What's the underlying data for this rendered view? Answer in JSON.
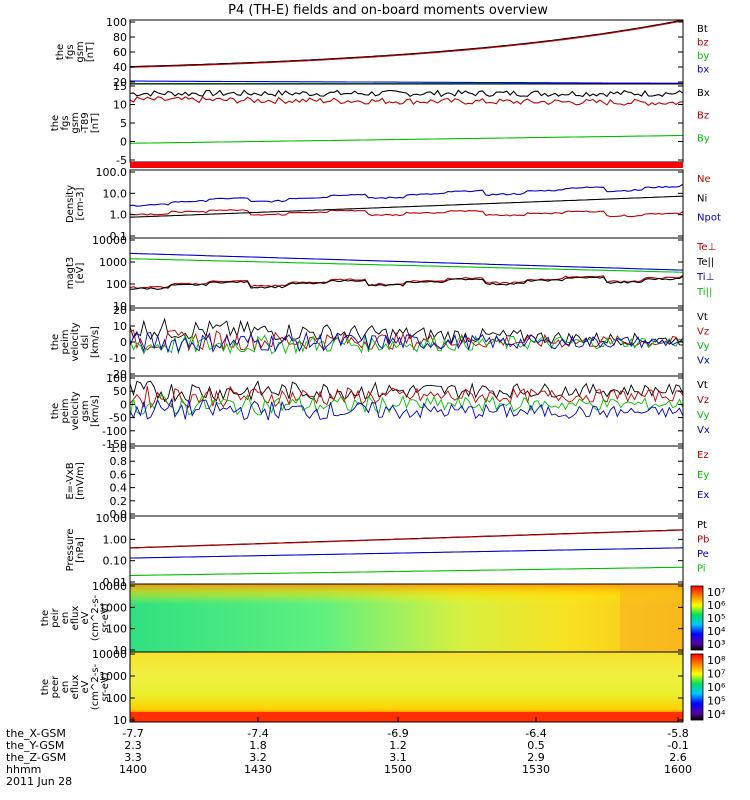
{
  "chart_data": {
    "type": "line",
    "title": "P4 (TH-E) fields and on-board moments overview",
    "panels": [
      {
        "id": "fgs_gsm",
        "ylabel": [
          "the",
          "fgs",
          "gsm",
          "[nT]"
        ],
        "yticks": [
          "100",
          "80",
          "60",
          "40",
          "20"
        ],
        "ylim": [
          16,
          104
        ],
        "series": [
          {
            "name": "Bt",
            "color": "#000000",
            "style": "exp",
            "start": 40,
            "end": 104
          },
          {
            "name": "bz",
            "color": "#c00000",
            "style": "exp",
            "start": 39,
            "end": 103
          },
          {
            "name": "by",
            "color": "#00c000",
            "style": "flat",
            "start": 16.5,
            "end": 16.5
          },
          {
            "name": "bx",
            "color": "#0000ff",
            "style": "flat",
            "start": 20,
            "end": 17
          }
        ]
      },
      {
        "id": "fgs_gsm_t89",
        "ylabel": [
          "the",
          "fgs",
          "gsm",
          "-T89",
          "[nT]"
        ],
        "yticks": [
          "15",
          "10",
          "5",
          "0",
          "-5"
        ],
        "ylim": [
          -8,
          17
        ],
        "series": [
          {
            "name": "Bx",
            "color": "#000000",
            "style": "noisy",
            "start": 14,
            "end": 14
          },
          {
            "name": "Bz",
            "color": "#c00000",
            "style": "noisy",
            "start": 12,
            "end": 11
          },
          {
            "name": "By",
            "color": "#00c000",
            "style": "linear",
            "start": -2,
            "end": 0.5
          }
        ]
      },
      {
        "id": "density",
        "ylabel": [
          "Density",
          "[cm-3]"
        ],
        "yticks": [
          "100.0",
          "10.0",
          "1.0",
          "0.1"
        ],
        "ylim": [
          0.07,
          300
        ],
        "log": true,
        "series": [
          {
            "name": "Ne",
            "color": "#c00000",
            "style": "step",
            "start": 1.8,
            "end": 1.4
          },
          {
            "name": "Ni",
            "color": "#000000",
            "style": "exp",
            "start": 0.9,
            "end": 12
          },
          {
            "name": "Npot",
            "color": "#0000cc",
            "style": "step",
            "start": 5,
            "end": 40
          }
        ]
      },
      {
        "id": "magt3",
        "ylabel": [
          "magt3",
          "[eV]"
        ],
        "yticks": [
          "10000",
          "1000",
          "100",
          "10"
        ],
        "ylim": [
          10,
          10000
        ],
        "log": true,
        "series": [
          {
            "name": "Te⊥",
            "color": "#c00000",
            "style": "step",
            "start": 100,
            "end": 200
          },
          {
            "name": "Te||",
            "color": "#000000",
            "style": "step",
            "start": 90,
            "end": 180
          },
          {
            "name": "Ti⊥",
            "color": "#0000cc",
            "style": "linear",
            "start": 2200,
            "end": 420
          },
          {
            "name": "Ti||",
            "color": "#00c000",
            "style": "linear",
            "start": 1300,
            "end": 340
          }
        ]
      },
      {
        "id": "peim_dsl",
        "ylabel": [
          "the",
          "peim",
          "velocity",
          "dsl",
          "[km/s]"
        ],
        "yticks": [
          "20",
          "10",
          "0",
          "-10",
          "-20"
        ],
        "ylim": [
          -20,
          20
        ],
        "series": [
          {
            "name": "Vt",
            "color": "#000000",
            "style": "spiky",
            "start": 8,
            "end": 1
          },
          {
            "name": "Vz",
            "color": "#c00000",
            "style": "spiky",
            "start": 1,
            "end": 0
          },
          {
            "name": "Vy",
            "color": "#00c000",
            "style": "spiky",
            "start": -2,
            "end": 0
          },
          {
            "name": "Vx",
            "color": "#0000cc",
            "style": "spiky",
            "start": 0,
            "end": 0
          }
        ]
      },
      {
        "id": "peim_gsm",
        "ylabel": [
          "the",
          "peim",
          "velocity",
          "gsm",
          "[km/s]"
        ],
        "yticks": [
          "100",
          "50",
          "0",
          "-50",
          "-100",
          "-150"
        ],
        "ylim": [
          -150,
          100
        ],
        "series": [
          {
            "name": "Vt",
            "color": "#000000",
            "style": "spiky",
            "start": 45,
            "end": 50
          },
          {
            "name": "Vz",
            "color": "#c00000",
            "style": "spiky",
            "start": 25,
            "end": 30
          },
          {
            "name": "Vy",
            "color": "#00c000",
            "style": "spiky",
            "start": -5,
            "end": 0
          },
          {
            "name": "Vx",
            "color": "#0000cc",
            "style": "spiky",
            "start": -20,
            "end": -30
          }
        ]
      },
      {
        "id": "efield",
        "ylabel": [
          "E=-VxB",
          "[mV/m]"
        ],
        "yticks": [
          "1.0",
          "0.8",
          "0.6",
          "0.4",
          "0.2",
          "0.0"
        ],
        "ylim": [
          0,
          1
        ],
        "series": [
          {
            "name": "Ez",
            "color": "#c00000",
            "style": "none"
          },
          {
            "name": "Ey",
            "color": "#00c000",
            "style": "none"
          },
          {
            "name": "Ex",
            "color": "#0000cc",
            "style": "none"
          }
        ]
      },
      {
        "id": "pressure",
        "ylabel": [
          "Pressure",
          "[nPa]"
        ],
        "yticks": [
          "10.00",
          "1.00",
          "0.10",
          "0.01"
        ],
        "ylim": [
          0.007,
          30
        ],
        "log": true,
        "series": [
          {
            "name": "Pt",
            "color": "#000000",
            "style": "exp",
            "start": 0.6,
            "end": 5.5
          },
          {
            "name": "Pb",
            "color": "#c00000",
            "style": "exp",
            "start": 0.58,
            "end": 5.3
          },
          {
            "name": "Pe",
            "color": "#0000cc",
            "style": "exp",
            "start": 0.17,
            "end": 0.6
          },
          {
            "name": "Pi",
            "color": "#00c000",
            "style": "exp",
            "start": 0.02,
            "end": 0.055
          }
        ]
      },
      {
        "id": "peir_eflux",
        "type": "heatmap",
        "ylabel": [
          "the",
          "peir",
          "en",
          "eflux",
          "eV",
          "(cm^2-s-",
          "sr-eV)"
        ],
        "yticks": [
          "10000",
          "1000",
          "100",
          "10"
        ],
        "colorbar": [
          "10⁷",
          "10⁶",
          "10⁵",
          "10⁴",
          "10³"
        ]
      },
      {
        "id": "peer_eflux",
        "type": "heatmap",
        "ylabel": [
          "the",
          "peer",
          "en",
          "eflux",
          "eV",
          "(cm^2-s-",
          "sr-eV)"
        ],
        "yticks": [
          "10000",
          "1000",
          "100",
          "10"
        ],
        "colorbar": [
          "10⁸",
          "10⁷",
          "10⁶",
          "10⁵",
          "10⁴"
        ]
      }
    ],
    "xaxis": {
      "rows": [
        {
          "label": "the_X-GSM",
          "values": [
            "-7.7",
            "-7.4",
            "-6.9",
            "-6.4",
            "-5.8"
          ]
        },
        {
          "label": "the_Y-GSM",
          "values": [
            "2.3",
            "1.8",
            "1.2",
            "0.5",
            "-0.1"
          ]
        },
        {
          "label": "the_Z-GSM",
          "values": [
            "3.3",
            "3.2",
            "3.1",
            "2.9",
            "2.6"
          ]
        },
        {
          "label": "hhmm",
          "values": [
            "1400",
            "1430",
            "1500",
            "1530",
            "1600"
          ]
        }
      ],
      "date": "2011 Jun 28"
    }
  }
}
